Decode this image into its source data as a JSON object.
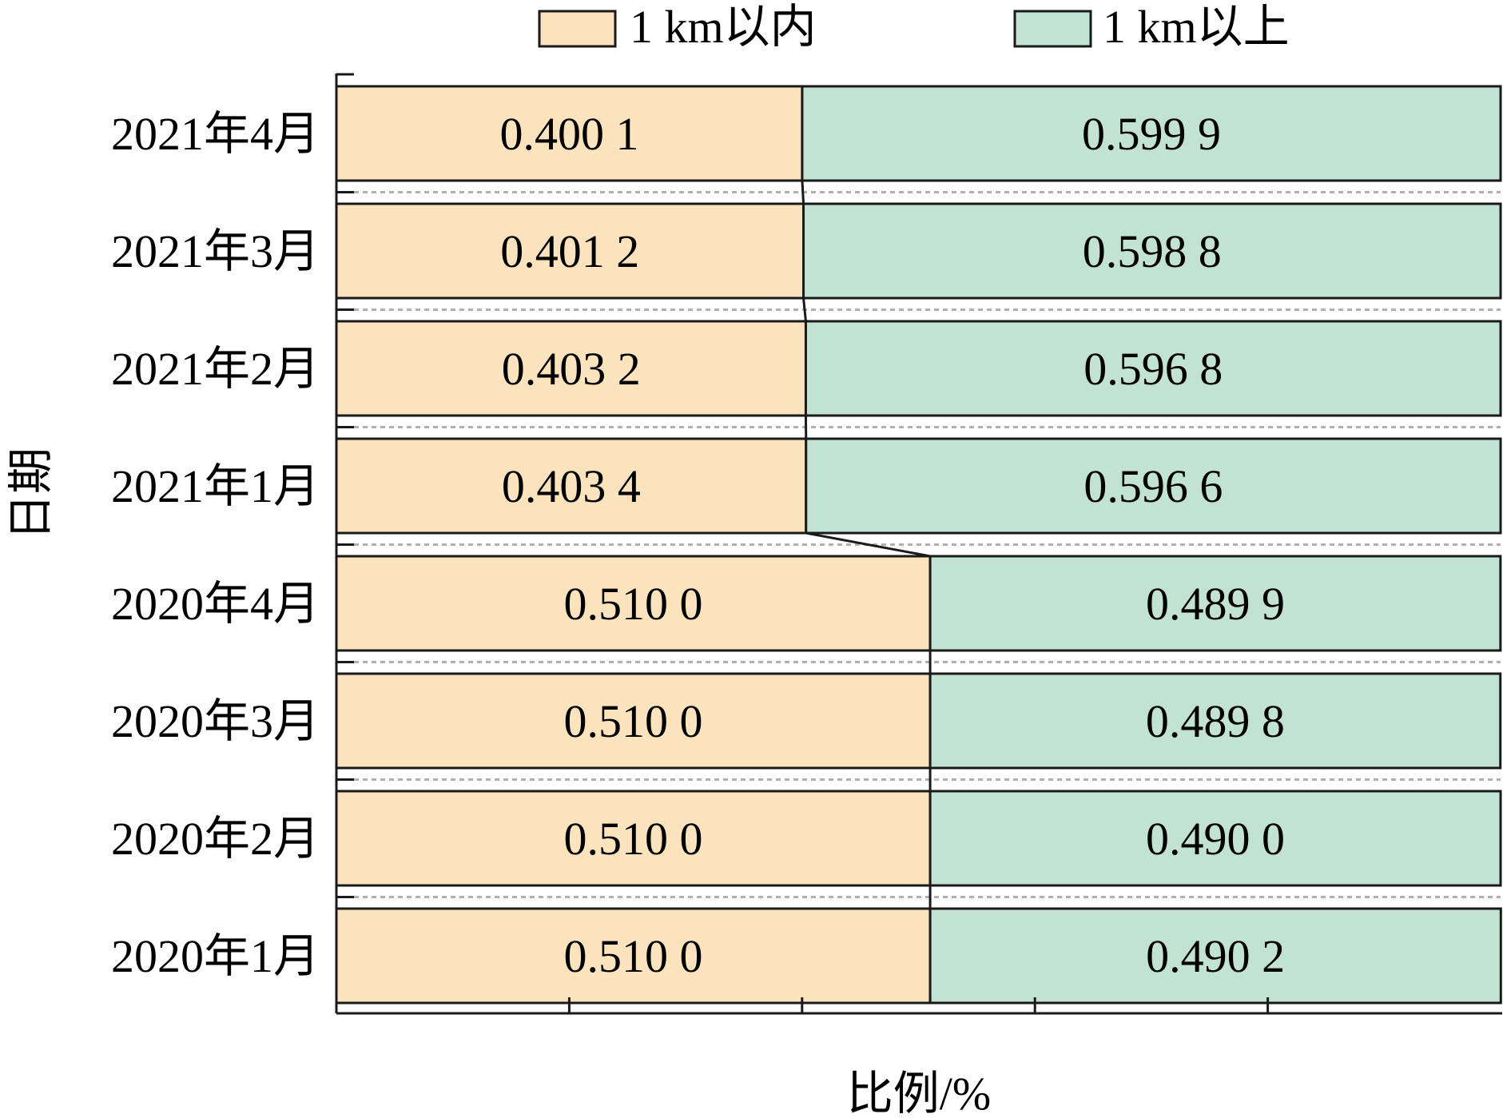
{
  "chart_data": {
    "type": "bar",
    "orientation": "horizontal",
    "stacked": true,
    "title": "",
    "xlabel": "比例/%",
    "ylabel": "日期",
    "xlim": [
      0,
      1
    ],
    "categories": [
      "2021年4月",
      "2021年3月",
      "2021年2月",
      "2021年1月",
      "2020年4月",
      "2020年3月",
      "2020年2月",
      "2020年1月"
    ],
    "series": [
      {
        "name": "1 km以内",
        "color": "#fbe3bd",
        "values": [
          0.4001,
          0.4012,
          0.4032,
          0.4034,
          0.51,
          0.51,
          0.51,
          0.51
        ],
        "labels": [
          "0.400 1",
          "0.401 2",
          "0.403 2",
          "0.403 4",
          "0.510 0",
          "0.510 0",
          "0.510 0",
          "0.510 0"
        ]
      },
      {
        "name": "1 km以上",
        "color": "#c2e3d3",
        "values": [
          0.5999,
          0.5988,
          0.5968,
          0.5966,
          0.4899,
          0.4898,
          0.49,
          0.4902
        ],
        "labels": [
          "0.599 9",
          "0.598 8",
          "0.596 8",
          "0.596 6",
          "0.489 9",
          "0.489 8",
          "0.490 0",
          "0.490 2"
        ]
      }
    ],
    "legend_position": "top",
    "connector_lines": true,
    "grid": false
  }
}
